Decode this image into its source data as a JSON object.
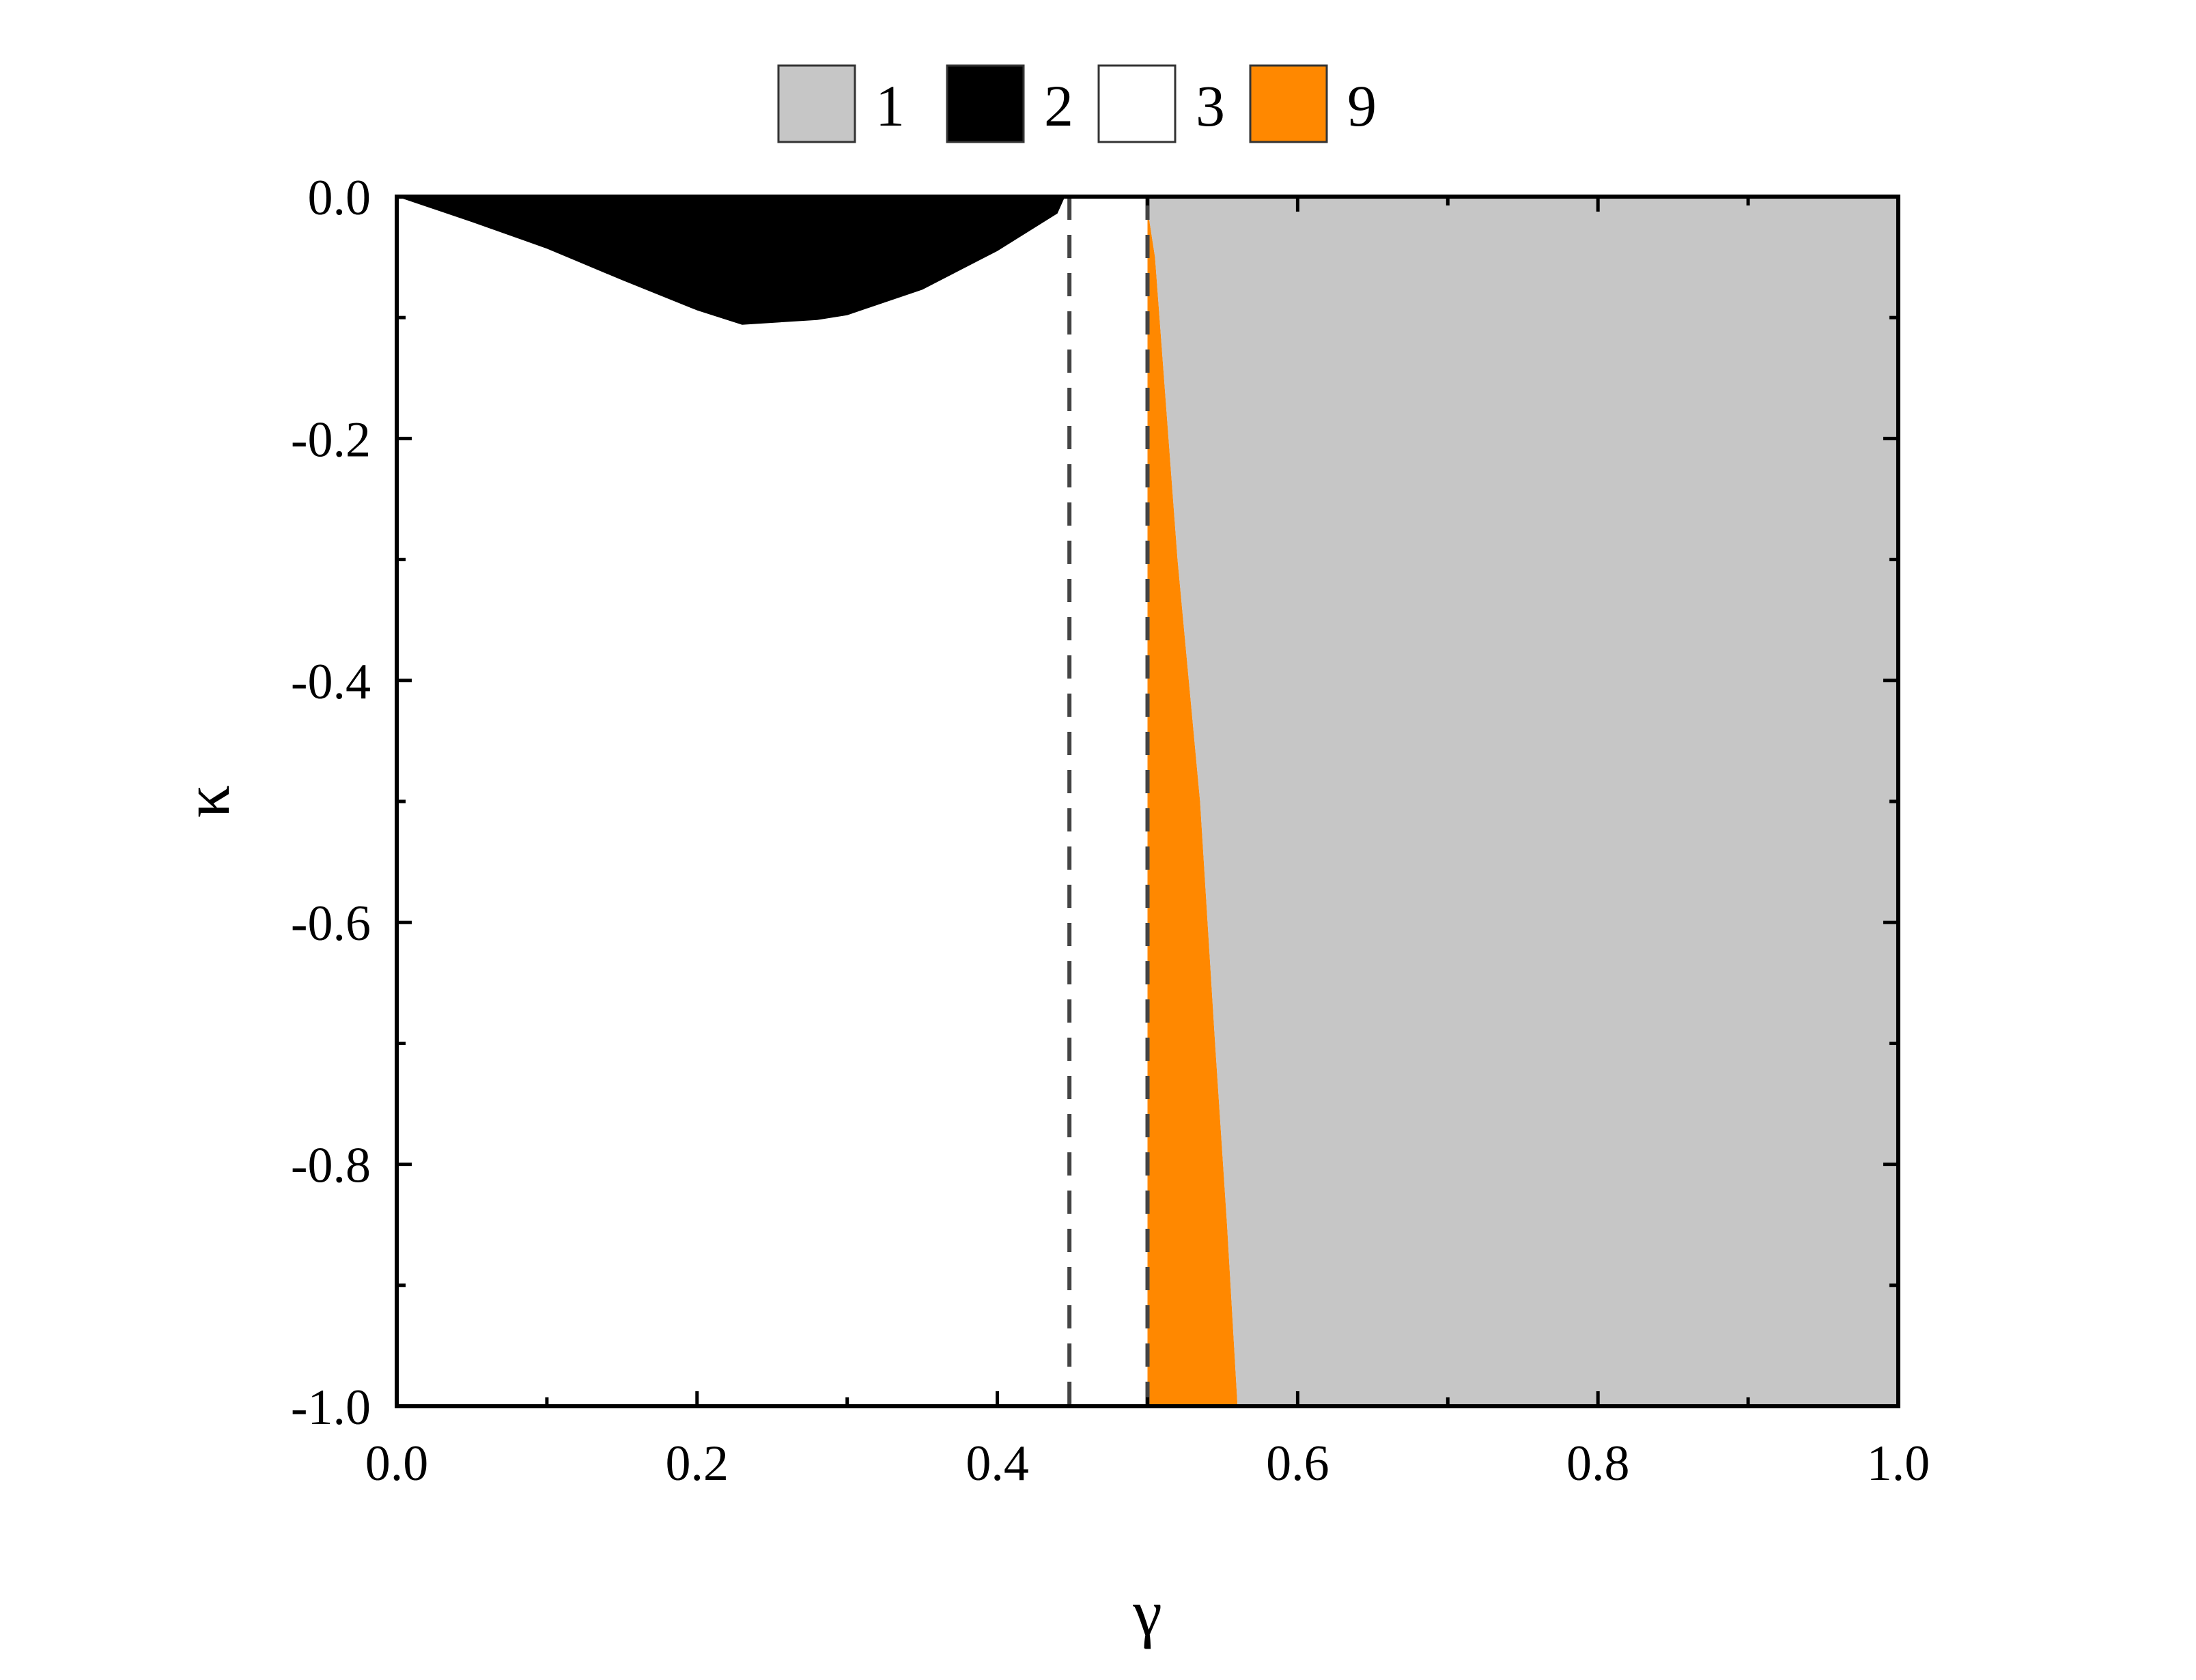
{
  "chart_data": {
    "type": "area",
    "title": "",
    "xlabel": "γ",
    "ylabel": "κ",
    "xlim": [
      0.0,
      1.0
    ],
    "ylim": [
      -1.0,
      0.0
    ],
    "x_ticks": [
      "0.0",
      "0.2",
      "0.4",
      "0.6",
      "0.8",
      "1.0"
    ],
    "y_ticks": [
      "0.0",
      "-0.2",
      "-0.4",
      "-0.6",
      "-0.8",
      "-1.0"
    ],
    "grid": false,
    "legend_position": "top",
    "legend": [
      {
        "label": "1",
        "color": "#c6c6c6"
      },
      {
        "label": "2",
        "color": "#000000"
      },
      {
        "label": "3",
        "color": "#ffffff"
      },
      {
        "label": "9",
        "color": "#ff8800"
      }
    ],
    "regions": [
      {
        "label": "3",
        "color": "#ffffff",
        "boundary": [
          [
            0.0,
            0.0
          ],
          [
            0.5,
            0.0
          ],
          [
            0.5,
            -1.0
          ],
          [
            0.0,
            -1.0
          ]
        ]
      },
      {
        "label": "2",
        "color": "#000000",
        "boundary": [
          [
            0.0,
            0.0
          ],
          [
            0.05,
            -0.021
          ],
          [
            0.1,
            -0.043
          ],
          [
            0.15,
            -0.069
          ],
          [
            0.2,
            -0.094
          ],
          [
            0.23,
            -0.106
          ],
          [
            0.28,
            -0.102
          ],
          [
            0.3,
            -0.098
          ],
          [
            0.35,
            -0.077
          ],
          [
            0.4,
            -0.045
          ],
          [
            0.44,
            -0.014
          ],
          [
            0.445,
            0.0
          ]
        ]
      },
      {
        "label": "9",
        "color": "#ff8800",
        "boundary": [
          [
            0.5,
            -0.01
          ],
          [
            0.505,
            -0.05
          ],
          [
            0.52,
            -0.3
          ],
          [
            0.535,
            -0.5
          ],
          [
            0.545,
            -0.7
          ],
          [
            0.553,
            -0.85
          ],
          [
            0.56,
            -1.0
          ],
          [
            0.5,
            -1.0
          ]
        ]
      },
      {
        "label": "1",
        "color": "#c6c6c6",
        "boundary": [
          [
            0.5,
            0.0
          ],
          [
            1.0,
            0.0
          ],
          [
            1.0,
            -1.0
          ],
          [
            0.56,
            -1.0
          ],
          [
            0.553,
            -0.85
          ],
          [
            0.545,
            -0.7
          ],
          [
            0.535,
            -0.5
          ],
          [
            0.52,
            -0.3
          ],
          [
            0.505,
            -0.05
          ],
          [
            0.5,
            -0.01
          ]
        ]
      }
    ],
    "dashed_lines": [
      {
        "x": 0.448,
        "color": "#444444"
      },
      {
        "x": 0.5,
        "color": "#444444"
      }
    ]
  }
}
